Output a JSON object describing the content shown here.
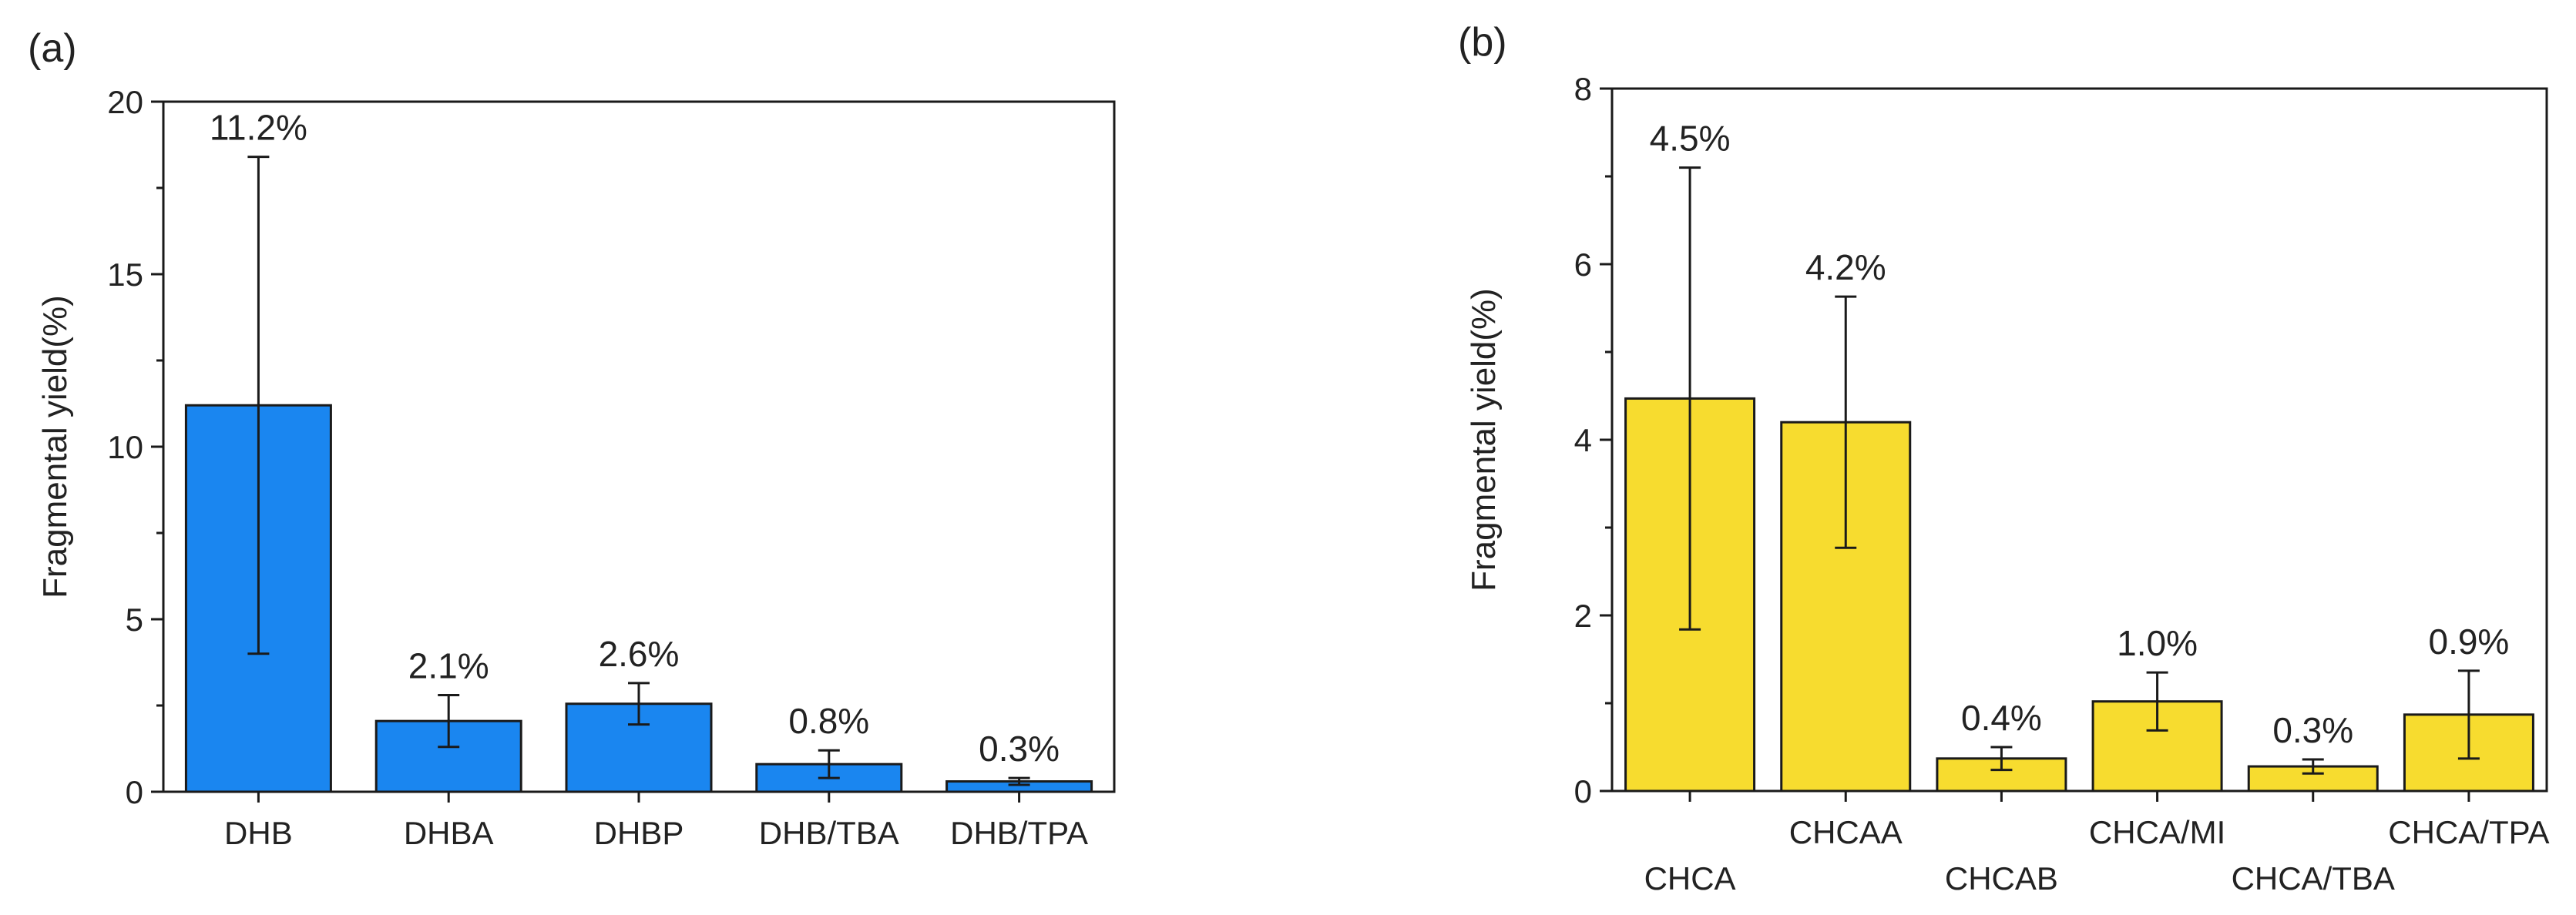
{
  "chart_data": [
    {
      "type": "bar",
      "panel_label": "(a)",
      "ylabel": "Fragmental yield(%)",
      "xlabel": "",
      "ylim": [
        0,
        20
      ],
      "yticks": [
        0,
        5,
        10,
        15,
        20
      ],
      "bar_color": "#1a86f0",
      "categories": [
        "DHB",
        "DHBA",
        "DHBP",
        "DHB/TBA",
        "DHB/TPA"
      ],
      "values": [
        11.2,
        2.05,
        2.55,
        0.8,
        0.3
      ],
      "errors": [
        7.2,
        0.75,
        0.6,
        0.4,
        0.1
      ],
      "data_labels": [
        "11.2%",
        "2.1%",
        "2.6%",
        "0.8%",
        "0.3%"
      ]
    },
    {
      "type": "bar",
      "panel_label": "(b)",
      "ylabel": "Fragmental yield(%)",
      "xlabel": "",
      "ylim": [
        0,
        8
      ],
      "yticks": [
        0,
        2,
        4,
        6,
        8
      ],
      "bar_color": "#f7dc2f",
      "categories": [
        "CHCA",
        "CHCAA",
        "CHCAB",
        "CHCA/MI",
        "CHCA/TBA",
        "CHCA/TPA"
      ],
      "values": [
        4.47,
        4.2,
        0.37,
        1.02,
        0.28,
        0.87
      ],
      "errors": [
        2.63,
        1.43,
        0.13,
        0.33,
        0.08,
        0.5
      ],
      "data_labels": [
        "4.5%",
        "4.2%",
        "0.4%",
        "1.0%",
        "0.3%",
        "0.9%"
      ]
    }
  ]
}
